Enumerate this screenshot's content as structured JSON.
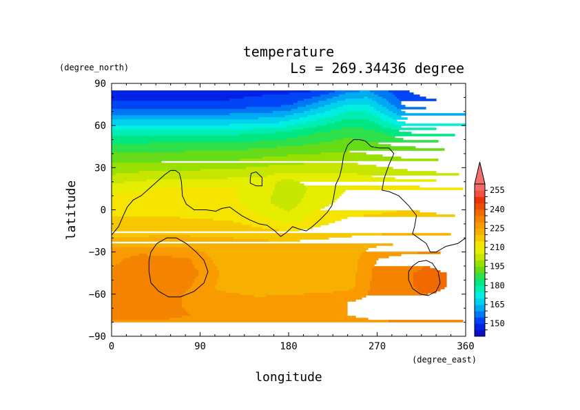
{
  "chart_data": {
    "type": "heatmap",
    "title": "temperature",
    "subtitle": "Ls = 269.34436 degree",
    "xlabel": "longitude",
    "ylabel": "latitude",
    "xunits": "(degree_east)",
    "yunits": "(degree_north)",
    "xlim": [
      0,
      360
    ],
    "ylim": [
      -90,
      90
    ],
    "x_ticks": [
      "0",
      "90",
      "180",
      "270",
      "360"
    ],
    "y_ticks": [
      "90",
      "60",
      "30",
      "0",
      "−30",
      "−60",
      "−90"
    ],
    "x_tick_values": [
      0,
      90,
      180,
      270,
      360
    ],
    "y_tick_values": [
      90,
      60,
      30,
      0,
      -30,
      -60,
      -90
    ],
    "colorbar": {
      "levels": [
        140,
        145,
        150,
        155,
        160,
        165,
        170,
        175,
        180,
        185,
        190,
        195,
        200,
        205,
        210,
        215,
        220,
        225,
        230,
        235,
        240,
        245,
        250,
        255,
        260
      ],
      "colors": [
        "#0d0dc4",
        "#0022e6",
        "#0044f5",
        "#0077f5",
        "#00aaf2",
        "#00d2ee",
        "#00efe0",
        "#00eeb4",
        "#00e680",
        "#2ee04a",
        "#66dc18",
        "#99e000",
        "#c6e600",
        "#e5ee00",
        "#f5e400",
        "#f7c800",
        "#f8b000",
        "#f89a00",
        "#f48400",
        "#f06a00",
        "#ec4e00",
        "#e83400",
        "#ef5040",
        "#f26a66"
      ],
      "labels": [
        "150",
        "165",
        "180",
        "195",
        "210",
        "225",
        "240",
        "255"
      ],
      "label_values": [
        150,
        165,
        180,
        195,
        210,
        225,
        240,
        255
      ],
      "extend": "max",
      "placement": "right"
    },
    "lat_rows": [
      {
        "lat": 85,
        "pts": [
          [
            0,
            148
          ],
          [
            120,
            148
          ],
          [
            200,
            149
          ],
          [
            220,
            152
          ],
          [
            240,
            158
          ],
          [
            260,
            160
          ],
          [
            280,
            155
          ],
          [
            300,
            150
          ],
          [
            320,
            148
          ],
          [
            360,
            148
          ]
        ]
      },
      {
        "lat": 75,
        "pts": [
          [
            0,
            151
          ],
          [
            120,
            151
          ],
          [
            180,
            154
          ],
          [
            210,
            162
          ],
          [
            240,
            170
          ],
          [
            260,
            170
          ],
          [
            280,
            162
          ],
          [
            300,
            153
          ],
          [
            330,
            151
          ],
          [
            360,
            151
          ]
        ]
      },
      {
        "lat": 65,
        "pts": [
          [
            0,
            164
          ],
          [
            120,
            164
          ],
          [
            170,
            166
          ],
          [
            200,
            172
          ],
          [
            240,
            180
          ],
          [
            260,
            180
          ],
          [
            280,
            172
          ],
          [
            300,
            165
          ],
          [
            360,
            164
          ]
        ]
      },
      {
        "lat": 55,
        "pts": [
          [
            0,
            178
          ],
          [
            120,
            178
          ],
          [
            170,
            180
          ],
          [
            200,
            184
          ],
          [
            240,
            188
          ],
          [
            270,
            186
          ],
          [
            300,
            180
          ],
          [
            360,
            178
          ]
        ]
      },
      {
        "lat": 45,
        "pts": [
          [
            0,
            187
          ],
          [
            120,
            188
          ],
          [
            180,
            190
          ],
          [
            240,
            193
          ],
          [
            300,
            190
          ],
          [
            360,
            188
          ]
        ]
      },
      {
        "lat": 35,
        "pts": [
          [
            0,
            194
          ],
          [
            120,
            195
          ],
          [
            180,
            198
          ],
          [
            240,
            199
          ],
          [
            300,
            196
          ],
          [
            360,
            195
          ]
        ]
      },
      {
        "lat": 25,
        "pts": [
          [
            0,
            200
          ],
          [
            40,
            202
          ],
          [
            120,
            203
          ],
          [
            180,
            206
          ],
          [
            240,
            206
          ],
          [
            300,
            202
          ],
          [
            360,
            200
          ]
        ]
      },
      {
        "lat": 15,
        "pts": [
          [
            0,
            208
          ],
          [
            60,
            211
          ],
          [
            120,
            211
          ],
          [
            150,
            207
          ],
          [
            180,
            203
          ],
          [
            210,
            206
          ],
          [
            240,
            210
          ],
          [
            300,
            212
          ],
          [
            360,
            210
          ]
        ]
      },
      {
        "lat": 5,
        "pts": [
          [
            0,
            213
          ],
          [
            60,
            213
          ],
          [
            120,
            212
          ],
          [
            150,
            206
          ],
          [
            180,
            203
          ],
          [
            210,
            208
          ],
          [
            240,
            212
          ],
          [
            300,
            214
          ],
          [
            360,
            213
          ]
        ]
      },
      {
        "lat": -5,
        "pts": [
          [
            0,
            215
          ],
          [
            60,
            215
          ],
          [
            120,
            214
          ],
          [
            150,
            211
          ],
          [
            180,
            206
          ],
          [
            210,
            212
          ],
          [
            240,
            215
          ],
          [
            300,
            216
          ],
          [
            360,
            215
          ]
        ]
      },
      {
        "lat": -15,
        "pts": [
          [
            0,
            217
          ],
          [
            60,
            218
          ],
          [
            120,
            218
          ],
          [
            180,
            215
          ],
          [
            240,
            218
          ],
          [
            300,
            219
          ],
          [
            360,
            218
          ]
        ]
      },
      {
        "lat": -25,
        "pts": [
          [
            0,
            224
          ],
          [
            60,
            224
          ],
          [
            120,
            222
          ],
          [
            180,
            222
          ],
          [
            240,
            223
          ],
          [
            300,
            226
          ],
          [
            360,
            226
          ]
        ]
      },
      {
        "lat": -35,
        "pts": [
          [
            0,
            228
          ],
          [
            30,
            233
          ],
          [
            80,
            230
          ],
          [
            110,
            223
          ],
          [
            180,
            221
          ],
          [
            240,
            222
          ],
          [
            270,
            230
          ],
          [
            320,
            234
          ],
          [
            360,
            232
          ]
        ]
      },
      {
        "lat": -45,
        "pts": [
          [
            0,
            231
          ],
          [
            30,
            234
          ],
          [
            80,
            232
          ],
          [
            110,
            225
          ],
          [
            180,
            222
          ],
          [
            240,
            222
          ],
          [
            270,
            232
          ],
          [
            320,
            236
          ],
          [
            360,
            234
          ]
        ]
      },
      {
        "lat": -55,
        "pts": [
          [
            0,
            232
          ],
          [
            30,
            234
          ],
          [
            80,
            230
          ],
          [
            110,
            224
          ],
          [
            180,
            222
          ],
          [
            240,
            223
          ],
          [
            270,
            232
          ],
          [
            320,
            236
          ],
          [
            360,
            234
          ]
        ]
      },
      {
        "lat": -65,
        "pts": [
          [
            0,
            234
          ],
          [
            40,
            233
          ],
          [
            90,
            228
          ],
          [
            150,
            226
          ],
          [
            200,
            228
          ],
          [
            260,
            231
          ],
          [
            300,
            234
          ],
          [
            360,
            234
          ]
        ]
      },
      {
        "lat": -75,
        "pts": [
          [
            0,
            232
          ],
          [
            40,
            232
          ],
          [
            80,
            230
          ],
          [
            150,
            228
          ],
          [
            220,
            229
          ],
          [
            280,
            232
          ],
          [
            320,
            233
          ],
          [
            360,
            232
          ]
        ]
      },
      {
        "lat": -85,
        "pts": [
          [
            0,
            227
          ],
          [
            120,
            227
          ],
          [
            240,
            227
          ],
          [
            360,
            227
          ]
        ]
      }
    ],
    "contours": [
      {
        "name": "outline-main",
        "pts": [
          [
            0,
            -18
          ],
          [
            7,
            -12
          ],
          [
            12,
            -4
          ],
          [
            16,
            2
          ],
          [
            22,
            7
          ],
          [
            30,
            10
          ],
          [
            38,
            15
          ],
          [
            46,
            20
          ],
          [
            54,
            25
          ],
          [
            60,
            28
          ],
          [
            65,
            28
          ],
          [
            69,
            26
          ],
          [
            71,
            20
          ],
          [
            72,
            10
          ],
          [
            76,
            4
          ],
          [
            84,
            0
          ],
          [
            96,
            0
          ],
          [
            106,
            -1
          ],
          [
            112,
            1
          ],
          [
            120,
            2
          ],
          [
            126,
            -1
          ],
          [
            132,
            -4
          ],
          [
            140,
            -7
          ],
          [
            150,
            -10
          ],
          [
            158,
            -11
          ],
          [
            166,
            -15
          ],
          [
            172,
            -19
          ],
          [
            178,
            -16
          ],
          [
            184,
            -12
          ],
          [
            192,
            -14
          ],
          [
            198,
            -15
          ],
          [
            204,
            -12
          ],
          [
            212,
            -7
          ],
          [
            219,
            -2
          ],
          [
            224,
            3
          ],
          [
            226,
            10
          ],
          [
            228,
            18
          ],
          [
            232,
            24
          ],
          [
            234,
            30
          ],
          [
            236,
            39
          ],
          [
            240,
            46
          ],
          [
            246,
            50
          ],
          [
            252,
            50
          ],
          [
            258,
            49
          ],
          [
            264,
            45
          ],
          [
            272,
            44
          ],
          [
            282,
            44
          ],
          [
            287,
            40
          ],
          [
            282,
            32
          ],
          [
            277,
            22
          ],
          [
            275,
            14
          ],
          [
            282,
            13
          ],
          [
            292,
            10
          ],
          [
            302,
            3
          ],
          [
            310,
            -4
          ],
          [
            308,
            -12
          ],
          [
            306,
            -17
          ],
          [
            312,
            -20
          ],
          [
            320,
            -24
          ],
          [
            324,
            -30
          ],
          [
            330,
            -30
          ],
          [
            340,
            -26
          ],
          [
            352,
            -24
          ],
          [
            360,
            -20
          ]
        ]
      },
      {
        "name": "outline-small-north",
        "pts": [
          [
            141,
            22
          ],
          [
            142,
            26
          ],
          [
            147,
            27
          ],
          [
            153,
            23
          ],
          [
            153,
            17
          ],
          [
            147,
            17
          ],
          [
            141,
            19
          ],
          [
            141,
            22
          ]
        ]
      },
      {
        "name": "outline-southwest",
        "pts": [
          [
            40,
            -30
          ],
          [
            46,
            -24
          ],
          [
            56,
            -20
          ],
          [
            66,
            -20
          ],
          [
            76,
            -24
          ],
          [
            86,
            -30
          ],
          [
            94,
            -36
          ],
          [
            98,
            -44
          ],
          [
            94,
            -52
          ],
          [
            84,
            -58
          ],
          [
            70,
            -62
          ],
          [
            58,
            -62
          ],
          [
            48,
            -58
          ],
          [
            40,
            -52
          ],
          [
            38,
            -44
          ],
          [
            38,
            -36
          ],
          [
            40,
            -30
          ]
        ]
      },
      {
        "name": "outline-southeast",
        "pts": [
          [
            306,
            -40
          ],
          [
            312,
            -37
          ],
          [
            320,
            -36
          ],
          [
            326,
            -38
          ],
          [
            332,
            -44
          ],
          [
            334,
            -52
          ],
          [
            330,
            -58
          ],
          [
            322,
            -61
          ],
          [
            314,
            -60
          ],
          [
            306,
            -56
          ],
          [
            302,
            -50
          ],
          [
            302,
            -44
          ],
          [
            306,
            -40
          ]
        ]
      }
    ]
  }
}
